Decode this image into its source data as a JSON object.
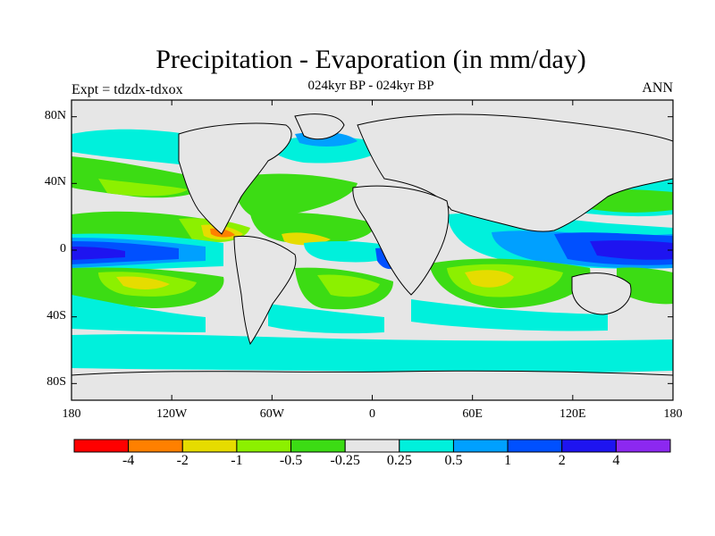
{
  "title": "Precipitation - Evaporation (in mm/day)",
  "subtitle": "024kyr BP - 024kyr BP",
  "left_label": "Expt = tdzdx-tdxox",
  "right_label": "ANN",
  "lat_ticks": [
    "80N",
    "40N",
    "0",
    "40S",
    "80S"
  ],
  "lon_ticks": [
    "180",
    "120W",
    "60W",
    "0",
    "60E",
    "120E",
    "180"
  ],
  "colorbar": {
    "colors": [
      "#ff0000",
      "#ff8000",
      "#e6dc00",
      "#8cf000",
      "#3cdc14",
      "#e6e6e6",
      "#00f0dc",
      "#00a0ff",
      "#0050ff",
      "#1e14f0",
      "#8c28f0"
    ],
    "labels": [
      "-4",
      "-2",
      "-1",
      "-0.5",
      "-0.25",
      "0.25",
      "0.5",
      "1",
      "2",
      "4"
    ]
  },
  "map": {
    "land_color": "#e6e6e6",
    "ocean_background": "#e6e6e6"
  }
}
